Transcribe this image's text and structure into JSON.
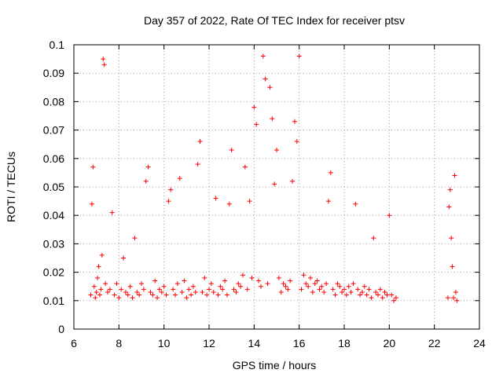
{
  "chart_data": {
    "type": "scatter",
    "title": "Day 357 of 2022, Rate Of TEC Index for receiver ptsv",
    "xlabel": "GPS time / hours",
    "ylabel": "ROTI / TECUs",
    "xlim": [
      6,
      24
    ],
    "ylim": [
      0,
      0.1
    ],
    "xticks": [
      "6",
      "8",
      "10",
      "12",
      "14",
      "16",
      "18",
      "20",
      "22",
      "24"
    ],
    "yticks": [
      "0",
      "0.01",
      "0.02",
      "0.03",
      "0.04",
      "0.05",
      "0.06",
      "0.07",
      "0.08",
      "0.09",
      "0.1"
    ],
    "grid": true,
    "marker": "+",
    "color": "#ff0000",
    "series": [
      {
        "x": [
          6.75,
          6.8,
          6.85,
          6.9,
          6.95,
          7.0,
          7.05,
          7.1,
          7.15,
          7.2,
          7.25,
          7.3,
          7.35,
          7.4,
          7.5,
          7.6,
          7.7,
          7.8,
          7.9,
          8.0,
          8.1,
          8.2,
          8.3,
          8.4,
          8.5,
          8.6,
          8.7,
          8.8,
          8.9,
          9.0,
          9.1,
          9.2,
          9.3,
          9.4,
          9.5,
          9.6,
          9.7,
          9.8,
          9.9,
          10.0,
          10.1,
          10.2,
          10.3,
          10.4,
          10.5,
          10.6,
          10.7,
          10.8,
          10.9,
          11.0,
          11.1,
          11.2,
          11.3,
          11.4,
          11.5,
          11.6,
          11.7,
          11.8,
          11.9,
          12.0,
          12.1,
          12.2,
          12.3,
          12.4,
          12.5,
          12.6,
          12.7,
          12.8,
          12.9,
          13.0,
          13.1,
          13.2,
          13.3,
          13.4,
          13.5,
          13.6,
          13.7,
          13.8,
          13.9,
          14.0,
          14.1,
          14.2,
          14.3,
          14.4,
          14.5,
          14.6,
          14.7,
          14.8,
          14.9,
          15.0,
          15.1,
          15.2,
          15.3,
          15.4,
          15.5,
          15.6,
          15.7,
          15.8,
          15.9,
          16.0,
          16.1,
          16.2,
          16.3,
          16.4,
          16.5,
          16.6,
          16.7,
          16.8,
          16.9,
          17.0,
          17.1,
          17.2,
          17.3,
          17.4,
          17.5,
          17.6,
          17.7,
          17.8,
          17.9,
          18.0,
          18.1,
          18.2,
          18.3,
          18.4,
          18.5,
          18.6,
          18.7,
          18.8,
          18.9,
          19.0,
          19.1,
          19.2,
          19.3,
          19.4,
          19.5,
          19.6,
          19.7,
          19.8,
          19.9,
          20.0,
          20.1,
          20.2,
          20.3,
          22.6,
          22.65,
          22.7,
          22.75,
          22.8,
          22.85,
          22.9,
          22.95,
          23.0
        ],
        "y": [
          0.012,
          0.044,
          0.057,
          0.015,
          0.011,
          0.013,
          0.018,
          0.022,
          0.012,
          0.014,
          0.026,
          0.095,
          0.093,
          0.016,
          0.013,
          0.014,
          0.041,
          0.012,
          0.016,
          0.011,
          0.014,
          0.025,
          0.013,
          0.012,
          0.015,
          0.011,
          0.032,
          0.013,
          0.012,
          0.016,
          0.014,
          0.052,
          0.057,
          0.013,
          0.012,
          0.017,
          0.011,
          0.014,
          0.013,
          0.015,
          0.012,
          0.045,
          0.049,
          0.014,
          0.012,
          0.016,
          0.053,
          0.013,
          0.017,
          0.011,
          0.014,
          0.012,
          0.015,
          0.013,
          0.058,
          0.066,
          0.013,
          0.018,
          0.012,
          0.014,
          0.016,
          0.013,
          0.046,
          0.012,
          0.015,
          0.014,
          0.017,
          0.012,
          0.044,
          0.063,
          0.014,
          0.013,
          0.016,
          0.015,
          0.019,
          0.057,
          0.014,
          0.045,
          0.018,
          0.078,
          0.072,
          0.017,
          0.015,
          0.096,
          0.088,
          0.016,
          0.085,
          0.074,
          0.051,
          0.063,
          0.018,
          0.013,
          0.016,
          0.015,
          0.014,
          0.017,
          0.052,
          0.073,
          0.066,
          0.096,
          0.014,
          0.019,
          0.016,
          0.015,
          0.018,
          0.013,
          0.016,
          0.017,
          0.014,
          0.015,
          0.013,
          0.016,
          0.045,
          0.055,
          0.014,
          0.012,
          0.016,
          0.015,
          0.013,
          0.014,
          0.012,
          0.015,
          0.013,
          0.016,
          0.044,
          0.014,
          0.012,
          0.013,
          0.015,
          0.012,
          0.014,
          0.011,
          0.032,
          0.013,
          0.012,
          0.014,
          0.011,
          0.013,
          0.012,
          0.04,
          0.012,
          0.01,
          0.011,
          0.011,
          0.043,
          0.049,
          0.032,
          0.022,
          0.011,
          0.054,
          0.013,
          0.01
        ]
      }
    ]
  }
}
